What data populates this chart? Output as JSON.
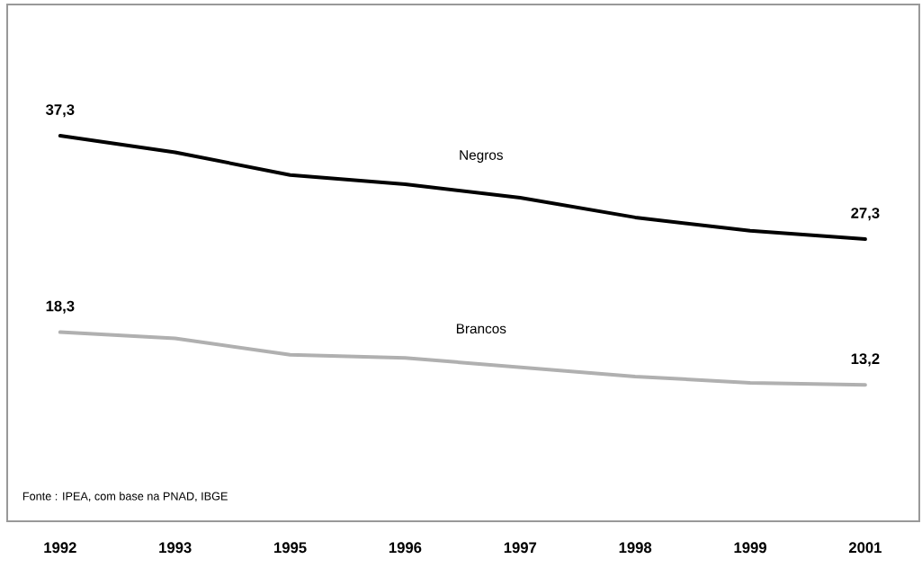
{
  "chart_data": {
    "type": "line",
    "categories": [
      "1992",
      "1993",
      "1995",
      "1996",
      "1997",
      "1998",
      "1999",
      "2001"
    ],
    "series": [
      {
        "name": "Negros",
        "color": "#000000",
        "values": [
          37.3,
          35.7,
          33.5,
          32.6,
          31.3,
          29.4,
          28.1,
          27.3
        ],
        "value_labels": [
          "37,3",
          null,
          null,
          null,
          null,
          null,
          null,
          "27,3"
        ]
      },
      {
        "name": "Brancos",
        "color": "#b0b0b0",
        "values": [
          18.3,
          17.7,
          16.1,
          15.8,
          14.9,
          14.0,
          13.4,
          13.2
        ],
        "value_labels": [
          "18,3",
          null,
          null,
          null,
          null,
          null,
          null,
          "13,2"
        ]
      }
    ],
    "ylim": [
      0,
      50
    ],
    "tick_labels": "x",
    "marker": "none",
    "line_style": "solid",
    "annotations": [
      "Fonte : IPEA, com base na PNAD, IBGE"
    ]
  }
}
